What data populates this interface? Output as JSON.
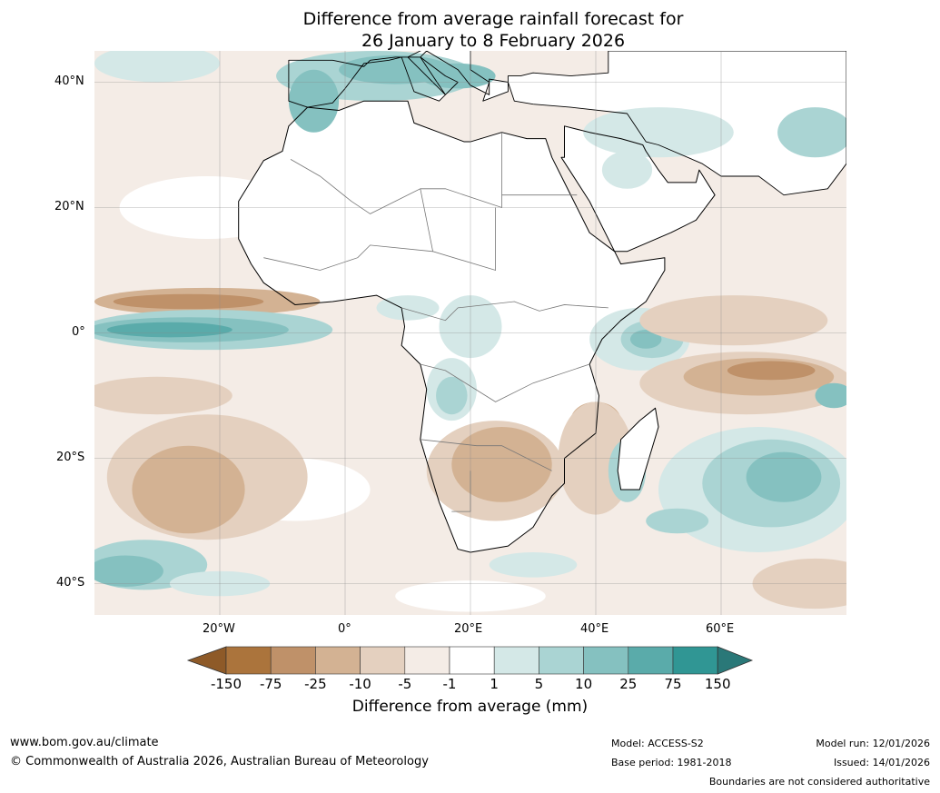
{
  "title": {
    "line1": "Difference from average rainfall forecast for",
    "line2": "26 January to 8 February 2026"
  },
  "axes": {
    "lat_labels": [
      "40°N",
      "20°N",
      "0°",
      "20°S",
      "40°S"
    ],
    "lon_labels": [
      "20°W",
      "0°",
      "20°E",
      "40°E",
      "60°E"
    ]
  },
  "colorbar": {
    "ticks": [
      "-150",
      "-75",
      "-25",
      "-10",
      "-5",
      "-1",
      "1",
      "5",
      "10",
      "25",
      "75",
      "150"
    ],
    "colors": [
      "#ab743c",
      "#bf9169",
      "#d3b293",
      "#e4d0bf",
      "#f4ece6",
      "#ffffff",
      "#d4e8e7",
      "#aad4d3",
      "#85c1c0",
      "#5aabaa",
      "#309694"
    ],
    "under_color": "#8e5a28",
    "over_color": "#2a7878",
    "label": "Difference from average (mm)"
  },
  "footer": {
    "url": "www.bom.gov.au/climate",
    "copyright": "© Commonwealth of Australia 2026, Australian Bureau of Meteorology",
    "model": "Model: ACCESS-S2",
    "base_period": "Base period: 1981-2018",
    "model_run": "Model run: 12/01/2026",
    "issued": "Issued: 14/01/2026",
    "disclaimer": "Boundaries are not considered authoritative"
  }
}
